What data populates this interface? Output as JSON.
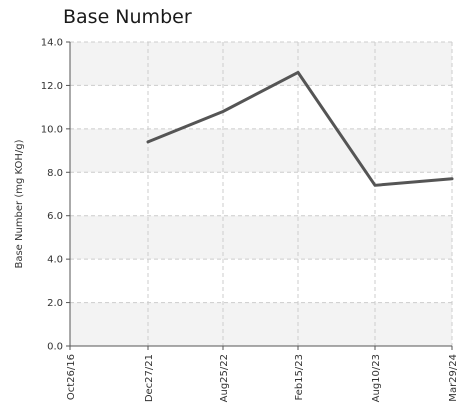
{
  "chart_data": {
    "type": "line",
    "title": "Base Number",
    "xlabel": "",
    "ylabel": "Base Number (mg KOH/g)",
    "ylim": [
      0,
      14
    ],
    "y_ticks": [
      "0.0",
      "2.0",
      "4.0",
      "6.0",
      "8.0",
      "10.0",
      "12.0",
      "14.0"
    ],
    "y_tick_values": [
      0,
      2,
      4,
      6,
      8,
      10,
      12,
      14
    ],
    "categories": [
      "Oct26/16",
      "Dec27/21",
      "Aug25/22",
      "Feb15/23",
      "Aug10/23",
      "Mar29/24"
    ],
    "series": [
      {
        "values": [
          null,
          9.4,
          10.8,
          12.6,
          7.4,
          7.7
        ]
      }
    ],
    "grid": true,
    "line_color": "#555555",
    "band_color": "#f3f3f3",
    "grid_color": "#cccccc"
  }
}
